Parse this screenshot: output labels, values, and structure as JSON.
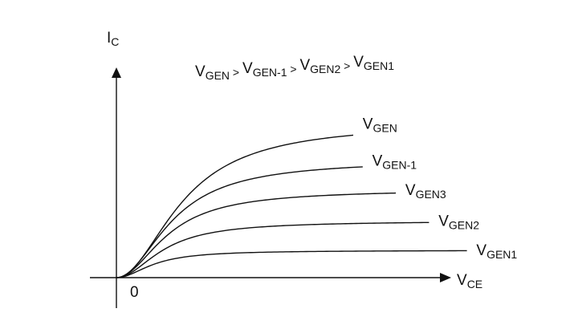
{
  "chart_data": {
    "type": "line",
    "title": "",
    "relation": {
      "parts": [
        {
          "main": "V",
          "sub": "GEN"
        },
        {
          "sep": " > "
        },
        {
          "main": "V",
          "sub": "GEN-1"
        },
        {
          "sep": " > "
        },
        {
          "main": "V",
          "sub": "GEN2"
        },
        {
          "sep": " >"
        },
        {
          "main": "V",
          "sub": "GEN1"
        }
      ]
    },
    "xlabel": {
      "main": "V",
      "sub": "CE"
    },
    "ylabel": {
      "main": "I",
      "sub": "C"
    },
    "origin_label": "0",
    "xlim": [
      0,
      100
    ],
    "ylim": [
      0,
      100
    ],
    "grid": false,
    "axis_colors": {
      "line": "#111111"
    },
    "series": [
      {
        "label": {
          "main": "V",
          "sub": "GEN"
        },
        "saturation": 79,
        "knee_x": 14,
        "end_x": 50,
        "label_x": 52
      },
      {
        "label": {
          "main": "V",
          "sub": "GEN-1"
        },
        "saturation": 60,
        "knee_x": 12,
        "end_x": 52,
        "label_x": 54
      },
      {
        "label": {
          "main": "V",
          "sub": "GEN3"
        },
        "saturation": 45,
        "knee_x": 11,
        "end_x": 59,
        "label_x": 61
      },
      {
        "label": {
          "main": "V",
          "sub": "GEN2"
        },
        "saturation": 29,
        "knee_x": 10,
        "end_x": 66,
        "label_x": 68
      },
      {
        "label": {
          "main": "V",
          "sub": "GEN1"
        },
        "saturation": 14,
        "knee_x": 8,
        "end_x": 74,
        "label_x": 76
      }
    ]
  }
}
